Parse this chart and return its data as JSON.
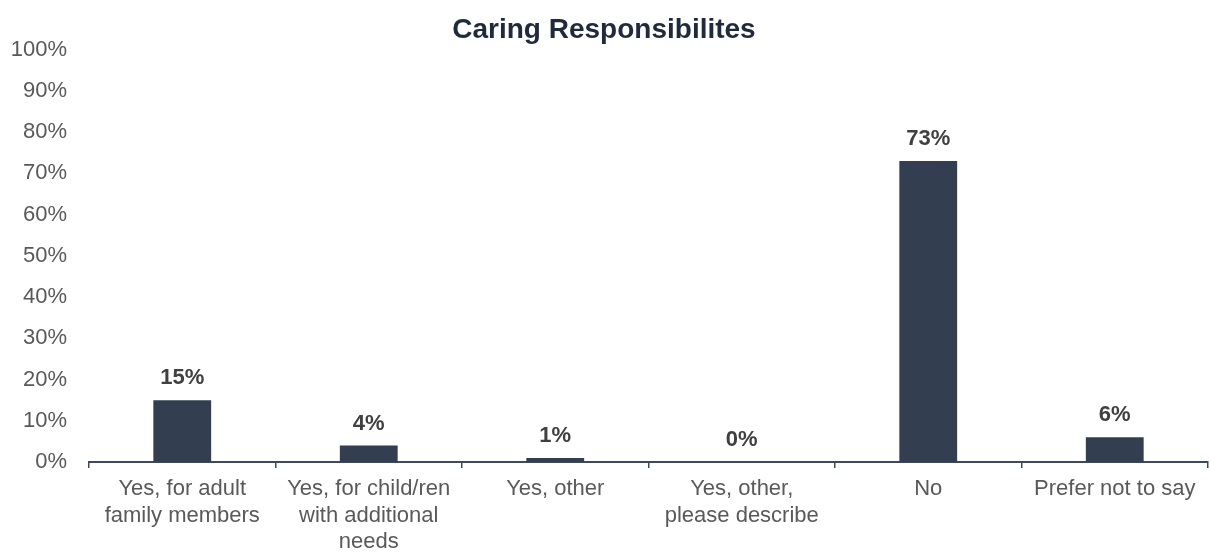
{
  "chart_data": {
    "type": "bar",
    "title": "Caring Responsibilites",
    "categories": [
      "Yes, for adult family members",
      "Yes, for child/ren with additional needs",
      "Yes, other",
      "Yes, other, please describe",
      "No",
      "Prefer not to say"
    ],
    "values": [
      15,
      4,
      1,
      0,
      73,
      6
    ],
    "value_labels": [
      "15%",
      "4%",
      "1%",
      "0%",
      "73%",
      "6%"
    ],
    "color": "#333f50",
    "ylim": [
      0,
      100
    ],
    "yticks": [
      {
        "value": 0,
        "label": "0%"
      },
      {
        "value": 10,
        "label": "10%"
      },
      {
        "value": 20,
        "label": "20%"
      },
      {
        "value": 30,
        "label": "30%"
      },
      {
        "value": 40,
        "label": "40%"
      },
      {
        "value": 50,
        "label": "50%"
      },
      {
        "value": 60,
        "label": "60%"
      },
      {
        "value": 70,
        "label": "70%"
      },
      {
        "value": 80,
        "label": "80%"
      },
      {
        "value": 90,
        "label": "90%"
      },
      {
        "value": 100,
        "label": "100%"
      }
    ],
    "grid": false,
    "legend": false
  }
}
